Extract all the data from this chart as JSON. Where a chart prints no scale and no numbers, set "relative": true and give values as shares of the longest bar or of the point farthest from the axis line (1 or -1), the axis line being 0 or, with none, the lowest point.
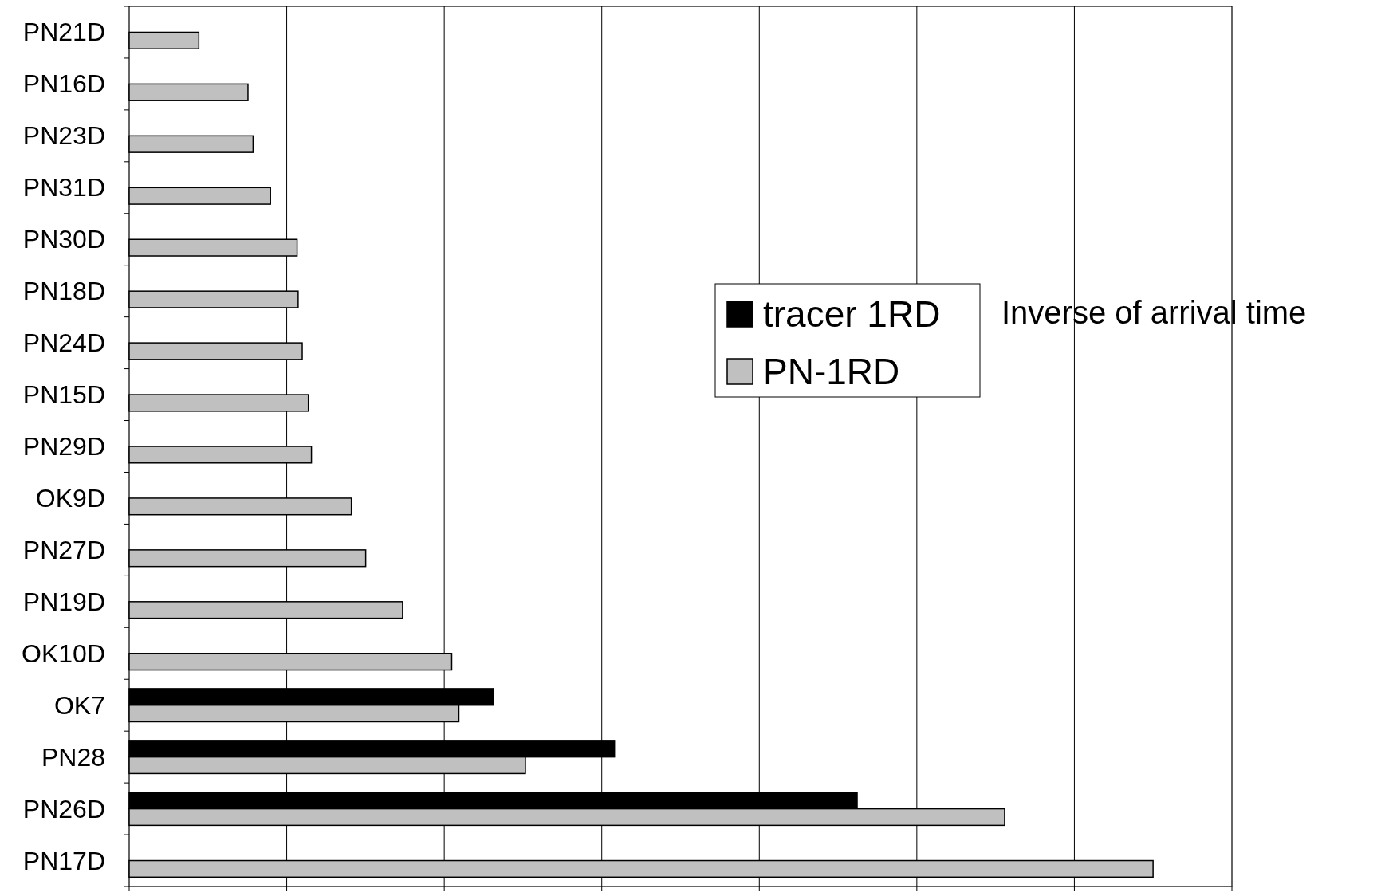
{
  "chart_data": {
    "type": "bar",
    "orientation": "horizontal",
    "relative": true,
    "grid": "x",
    "legend": "right",
    "annotations": [
      "Inverse of arrival time"
    ],
    "categories": [
      "PN21D",
      "PN16D",
      "PN23D",
      "PN31D",
      "PN30D",
      "PN18D",
      "PN24D",
      "PN15D",
      "PN29D",
      "OK9D",
      "PN27D",
      "PN19D",
      "OK10D",
      "OK7",
      "PN28",
      "PN26D",
      "PN17D"
    ],
    "series": [
      {
        "name": "tracer 1RD",
        "color": "#000000",
        "values": [
          null,
          null,
          null,
          null,
          null,
          null,
          null,
          null,
          null,
          null,
          null,
          null,
          null,
          0.356,
          0.474,
          0.711,
          null
        ]
      },
      {
        "name": "PN-1RD",
        "color": "#c0c0c0",
        "values": [
          0.068,
          0.116,
          0.121,
          0.138,
          0.164,
          0.165,
          0.169,
          0.175,
          0.178,
          0.217,
          0.231,
          0.267,
          0.315,
          0.322,
          0.387,
          0.855,
          1
        ]
      }
    ]
  }
}
